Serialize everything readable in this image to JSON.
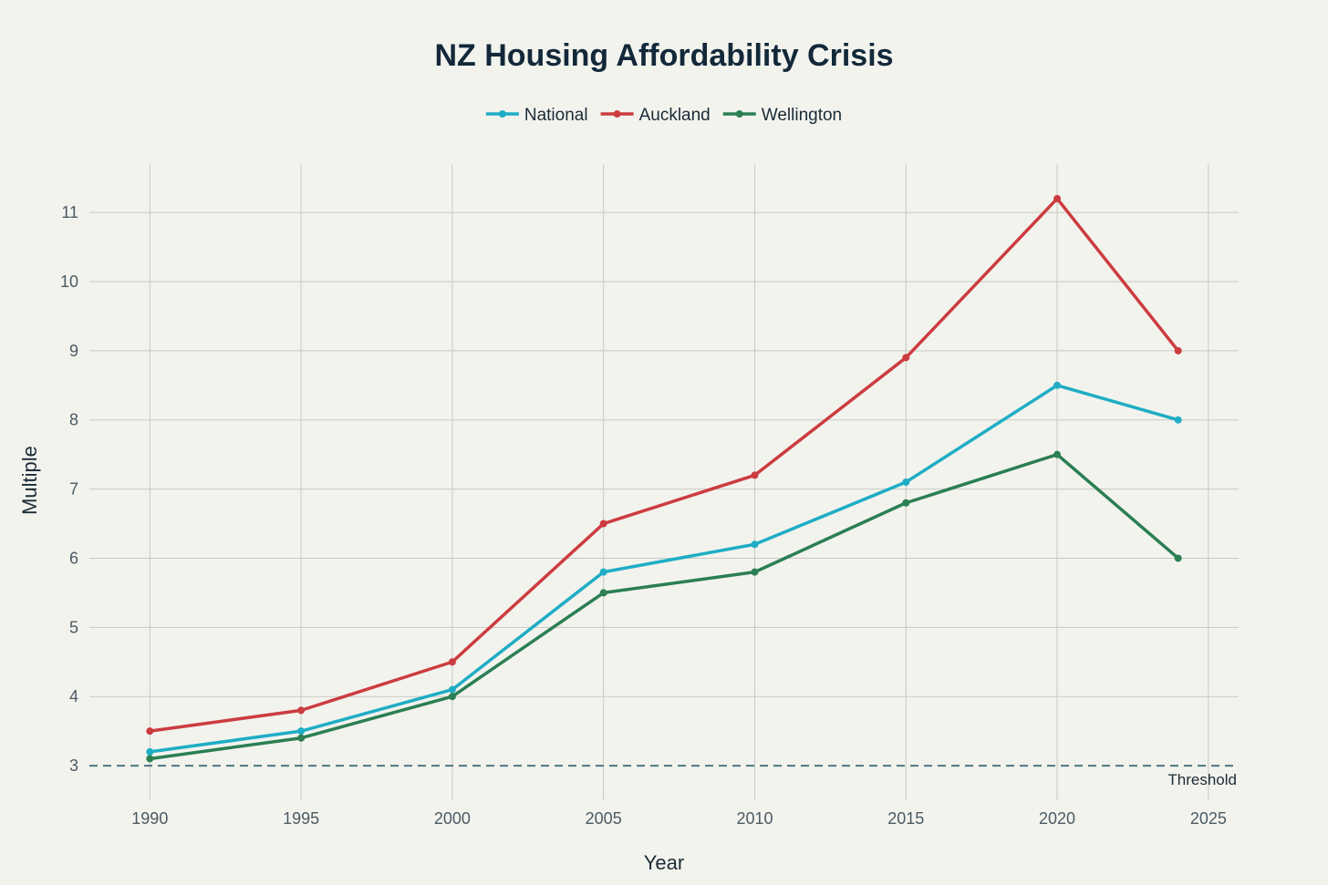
{
  "chart_data": {
    "type": "line",
    "title": "NZ Housing Affordability Crisis",
    "xlabel": "Year",
    "ylabel": "Multiple",
    "x": [
      1990,
      1995,
      2000,
      2005,
      2010,
      2015,
      2020,
      2024
    ],
    "xlim": [
      1988,
      2026
    ],
    "ylim": [
      2.5,
      11.7
    ],
    "xticks": [
      1990,
      1995,
      2000,
      2005,
      2010,
      2015,
      2020,
      2025
    ],
    "yticks": [
      3,
      4,
      5,
      6,
      7,
      8,
      9,
      10,
      11
    ],
    "grid": true,
    "legend_position": "top-center",
    "series": [
      {
        "name": "National",
        "color": "#1fadc5",
        "values": [
          3.2,
          3.5,
          4.1,
          5.8,
          6.2,
          7.1,
          8.5,
          8.0
        ]
      },
      {
        "name": "Auckland",
        "color": "#cc3c3f",
        "values": [
          3.5,
          3.8,
          4.5,
          6.5,
          7.2,
          8.9,
          11.2,
          9.0
        ]
      },
      {
        "name": "Wellington",
        "color": "#2b7f52",
        "values": [
          3.1,
          3.4,
          4.0,
          5.5,
          5.8,
          6.8,
          7.5,
          6.0
        ]
      }
    ],
    "threshold": {
      "label": "Threshold",
      "value": 3,
      "color": "#4e7682"
    }
  }
}
